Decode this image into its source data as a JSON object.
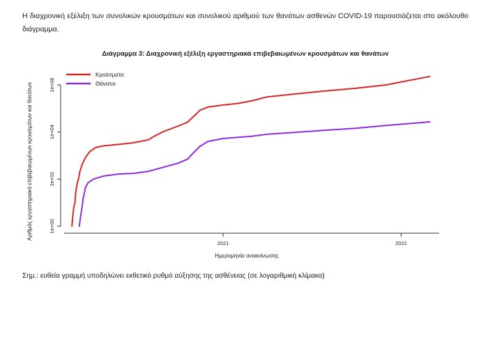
{
  "intro_text": "Η διαχρονική εξέλιξη των συνολικών κρουσμάτων και συνολικού αριθμού των θανάτων ασθενών COVID-19 παρουσιάζεται στο ακόλουθο διάγραμμα.",
  "note_text": "Σημ.: ευθεία γραμμή υποδηλώνει εκθετικό ρυθμό αύξησης της ασθένειας (σε λογαριθμική κλίμακα)",
  "chart_data": {
    "type": "line",
    "title": "Διάγραμμα 3: Διαχρονική εξέλιξη εργαστηριακά επιβεβαιωμένων κρουσμάτων και θανάτων",
    "xlabel": "Ημερομηνία ανακοίνωσης",
    "ylabel": "Αριθμός εργαστηριακά επιβεβαιωμένων κρουσμάτων και θανάτων",
    "y_scale": "log10",
    "ylim": [
      1,
      1000000
    ],
    "xlim": [
      "2020-02-10",
      "2022-03-20"
    ],
    "x_ticks": [
      {
        "date": "2021-01-01",
        "label": "2021"
      },
      {
        "date": "2022-01-01",
        "label": "2022"
      }
    ],
    "y_ticks": [
      {
        "value": 1,
        "label": "1e+00"
      },
      {
        "value": 100,
        "label": "1e+02"
      },
      {
        "value": 10000,
        "label": "1e+04"
      },
      {
        "value": 1000000,
        "label": "1e+06"
      }
    ],
    "grid": false,
    "legend_position": "top-left",
    "series": [
      {
        "name": "Κρούσματα",
        "color": "#d62728",
        "points": [
          [
            "2020-02-26",
            1
          ],
          [
            "2020-02-28",
            3
          ],
          [
            "2020-03-01",
            7
          ],
          [
            "2020-03-03",
            9
          ],
          [
            "2020-03-05",
            30
          ],
          [
            "2020-03-08",
            70
          ],
          [
            "2020-03-11",
            110
          ],
          [
            "2020-03-13",
            200
          ],
          [
            "2020-03-18",
            420
          ],
          [
            "2020-03-25",
            850
          ],
          [
            "2020-04-03",
            1500
          ],
          [
            "2020-04-15",
            2200
          ],
          [
            "2020-05-01",
            2600
          ],
          [
            "2020-06-01",
            3000
          ],
          [
            "2020-07-01",
            3500
          ],
          [
            "2020-08-01",
            4700
          ],
          [
            "2020-08-15",
            7000
          ],
          [
            "2020-09-01",
            10500
          ],
          [
            "2020-10-01",
            18000
          ],
          [
            "2020-10-20",
            26000
          ],
          [
            "2020-11-01",
            45000
          ],
          [
            "2020-11-15",
            85000
          ],
          [
            "2020-12-01",
            115000
          ],
          [
            "2021-01-01",
            140000
          ],
          [
            "2021-02-01",
            165000
          ],
          [
            "2021-03-01",
            210000
          ],
          [
            "2021-04-01",
            310000
          ],
          [
            "2021-06-01",
            420000
          ],
          [
            "2021-08-01",
            560000
          ],
          [
            "2021-10-01",
            720000
          ],
          [
            "2021-12-01",
            1000000
          ],
          [
            "2022-03-01",
            2300000
          ]
        ]
      },
      {
        "name": "Θάνατοι",
        "color": "#8e2cdc",
        "points": [
          [
            "2020-03-12",
            1
          ],
          [
            "2020-03-14",
            2
          ],
          [
            "2020-03-17",
            5
          ],
          [
            "2020-03-20",
            15
          ],
          [
            "2020-03-25",
            45
          ],
          [
            "2020-03-30",
            70
          ],
          [
            "2020-04-10",
            100
          ],
          [
            "2020-05-01",
            135
          ],
          [
            "2020-06-01",
            165
          ],
          [
            "2020-07-01",
            175
          ],
          [
            "2020-08-01",
            215
          ],
          [
            "2020-09-01",
            320
          ],
          [
            "2020-10-01",
            480
          ],
          [
            "2020-10-20",
            700
          ],
          [
            "2020-11-01",
            1300
          ],
          [
            "2020-11-15",
            2500
          ],
          [
            "2020-12-01",
            4000
          ],
          [
            "2021-01-01",
            5300
          ],
          [
            "2021-02-01",
            6000
          ],
          [
            "2021-03-01",
            6600
          ],
          [
            "2021-04-01",
            8000
          ],
          [
            "2021-06-01",
            9800
          ],
          [
            "2021-08-01",
            12000
          ],
          [
            "2021-10-01",
            14500
          ],
          [
            "2021-12-01",
            19000
          ],
          [
            "2022-03-01",
            27000
          ]
        ]
      }
    ]
  }
}
